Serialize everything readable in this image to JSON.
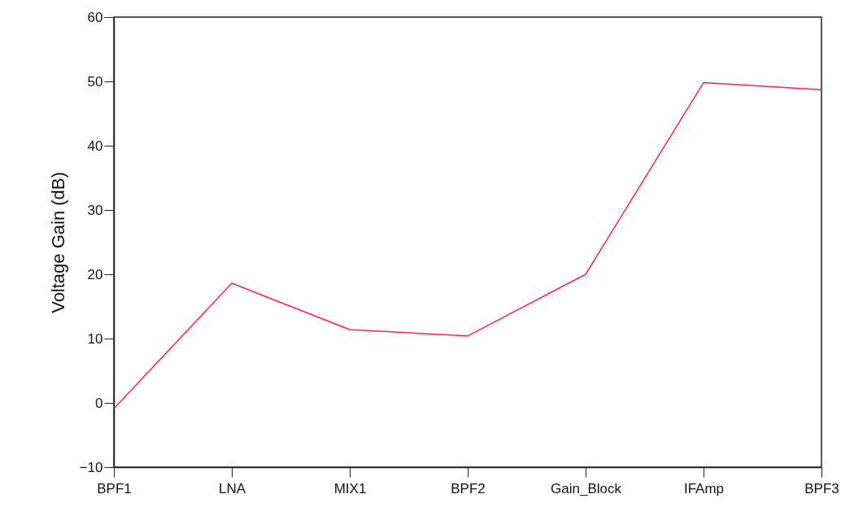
{
  "chart_data": {
    "type": "line",
    "ylabel": "Voltage Gain (dB)",
    "categories": [
      "BPF1",
      "LNA",
      "MIX1",
      "BPF2",
      "Gain_Block",
      "IFAmp",
      "BPF3"
    ],
    "series": [
      {
        "color": "#ff1f4f",
        "values": [
          -0.9,
          18.6,
          11.4,
          10.4,
          20.0,
          49.8,
          48.7
        ]
      }
    ],
    "ylim": [
      -10,
      60
    ],
    "yticks": [
      -10,
      0,
      10,
      20,
      30,
      40,
      50,
      60
    ],
    "grid": false,
    "marker": "none",
    "line_style": "solid"
  }
}
